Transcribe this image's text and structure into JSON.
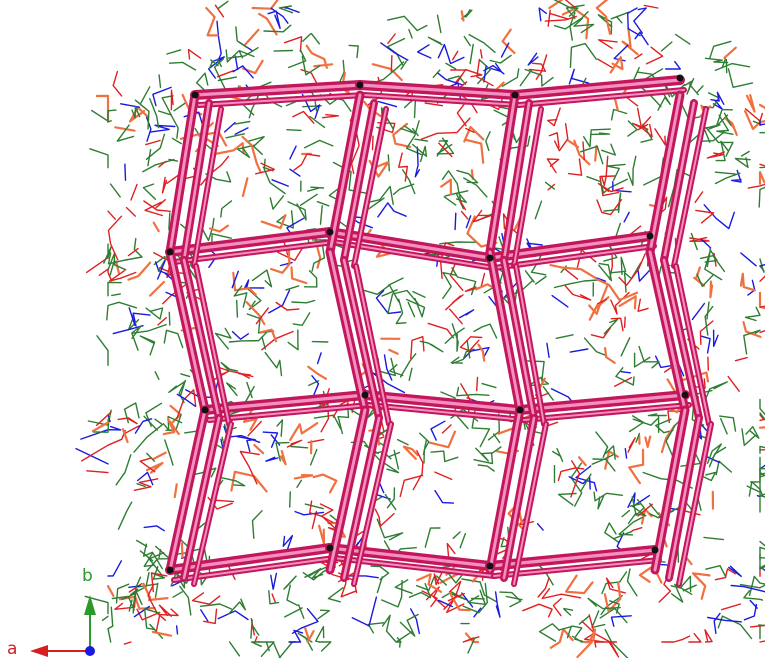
{
  "axes": {
    "a_label": "a",
    "b_label": "b",
    "a_color": "#d42020",
    "b_color": "#2a9a2a",
    "origin_color": "#1a1ae0"
  },
  "colors": {
    "background": "#ffffff",
    "framework_bond": "#c2185b",
    "framework_highlight": "#f48fbf",
    "framework_node": "#111111",
    "ligand_green": "#2e7d32",
    "ligand_blue": "#1a1ae0",
    "ligand_red": "#e02020",
    "ligand_orange": "#f07040"
  }
}
